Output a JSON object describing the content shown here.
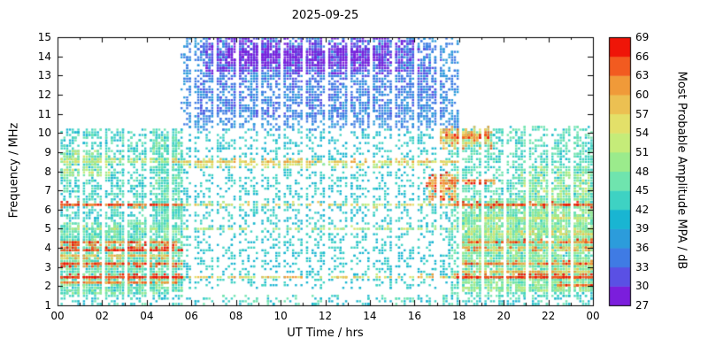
{
  "title": "2025-09-25",
  "axes": {
    "x_label": "UT Time / hrs",
    "y_label": "Frequency / MHz",
    "x_ticks": [
      "00",
      "02",
      "04",
      "06",
      "08",
      "10",
      "12",
      "14",
      "16",
      "18",
      "20",
      "22",
      "00"
    ],
    "y_ticks": [
      "1",
      "2",
      "3",
      "4",
      "5",
      "6",
      "7",
      "8",
      "9",
      "10",
      "11",
      "12",
      "13",
      "14",
      "15"
    ]
  },
  "colorbar": {
    "label": "Most Probable Amplitude MPA / dB",
    "min": 27,
    "max": 69,
    "step": 3,
    "tick_labels": [
      "27",
      "30",
      "33",
      "36",
      "39",
      "42",
      "45",
      "48",
      "51",
      "54",
      "57",
      "60",
      "63",
      "66",
      "69"
    ],
    "colors": [
      "#7B1EDC",
      "#5A50E4",
      "#3F7BE4",
      "#2C9CDB",
      "#19B5D2",
      "#3ED2C3",
      "#6FE4AE",
      "#9BEB8C",
      "#C5EC79",
      "#E3E069",
      "#ECC052",
      "#F09A39",
      "#F25B20",
      "#EF1508"
    ]
  },
  "chart_data": {
    "type": "heatmap",
    "title": "2025-09-25",
    "xlabel": "UT Time / hrs",
    "ylabel": "Frequency / MHz",
    "xlim": [
      0,
      24
    ],
    "ylim": [
      1,
      15
    ],
    "clim": [
      27,
      69
    ],
    "legend_position": "right-colorbar",
    "grid": false,
    "seed": 42,
    "regions": [
      {
        "name": "night-early-background",
        "t": [
          0,
          5.6
        ],
        "f": [
          1.4,
          10.2
        ],
        "n": 2400,
        "v": [
          40,
          47
        ]
      },
      {
        "name": "night-late-background",
        "t": [
          17.6,
          24
        ],
        "f": [
          1.4,
          10.3
        ],
        "n": 2800,
        "v": [
          41,
          48
        ]
      },
      {
        "name": "day-background",
        "t": [
          5.6,
          17.6
        ],
        "f": [
          1.9,
          10.2
        ],
        "n": 2300,
        "v": [
          39,
          45
        ]
      },
      {
        "name": "day-highband-blue",
        "t": [
          5.6,
          18.0
        ],
        "f": [
          10.2,
          15
        ],
        "n": 2400,
        "v": [
          33,
          39
        ]
      },
      {
        "name": "day-highband-blue-dense",
        "t": [
          6.3,
          17.3
        ],
        "f": [
          10.8,
          14.6
        ],
        "n": 1400,
        "v": [
          31,
          37
        ]
      },
      {
        "name": "day-top-purple",
        "t": [
          6.6,
          16.2
        ],
        "f": [
          13.1,
          15
        ],
        "n": 800,
        "v": [
          27,
          32
        ]
      },
      {
        "name": "day-top-purple-streak",
        "t": [
          7.6,
          14.6
        ],
        "f": [
          13.5,
          14.4
        ],
        "n": 450,
        "v": [
          27,
          30
        ]
      },
      {
        "name": "evening-green-dense",
        "t": [
          18,
          24
        ],
        "f": [
          1.8,
          6.6
        ],
        "n": 2600,
        "v": [
          44,
          52
        ]
      },
      {
        "name": "morning-green",
        "t": [
          0,
          5.6
        ],
        "f": [
          1.6,
          5.3
        ],
        "n": 1500,
        "v": [
          43,
          50
        ]
      },
      {
        "name": "bottom-row-sparse",
        "t": [
          0,
          24
        ],
        "f": [
          1.0,
          1.5
        ],
        "n": 320,
        "v": [
          39,
          47
        ]
      },
      {
        "name": "pre-dawn-column",
        "t": [
          4.3,
          5.6
        ],
        "f": [
          5.5,
          9.8
        ],
        "n": 420,
        "v": [
          42,
          49
        ]
      },
      {
        "name": "dusk-red-patch",
        "t": [
          16.6,
          17.9
        ],
        "f": [
          6.5,
          7.9
        ],
        "n": 150,
        "v": [
          54,
          68
        ]
      },
      {
        "name": "dusk-high-patch",
        "t": [
          17.1,
          19.4
        ],
        "f": [
          9.2,
          10.3
        ],
        "n": 170,
        "v": [
          51,
          66
        ]
      },
      {
        "name": "evening-mid-green",
        "t": [
          20.8,
          24
        ],
        "f": [
          6.6,
          8.3
        ],
        "n": 260,
        "v": [
          45,
          55
        ]
      },
      {
        "name": "early-mid-patch",
        "t": [
          0,
          2.3
        ],
        "f": [
          7.7,
          9.1
        ],
        "n": 180,
        "v": [
          45,
          55
        ]
      }
    ],
    "stripes": [
      {
        "f": 2.48,
        "t": [
          0,
          5.6
        ],
        "n": 230,
        "v": [
          63,
          69
        ]
      },
      {
        "f": 2.48,
        "t": [
          17.8,
          24
        ],
        "n": 260,
        "v": [
          63,
          69
        ]
      },
      {
        "f": 2.48,
        "t": [
          5.6,
          17.8
        ],
        "n": 110,
        "v": [
          51,
          63
        ]
      },
      {
        "f": 2.2,
        "t": [
          0,
          5.4
        ],
        "n": 130,
        "v": [
          57,
          66
        ]
      },
      {
        "f": 2.75,
        "t": [
          18,
          24
        ],
        "n": 120,
        "v": [
          54,
          63
        ]
      },
      {
        "f": 3.15,
        "t": [
          0,
          5.6
        ],
        "n": 170,
        "v": [
          60,
          69
        ]
      },
      {
        "f": 3.18,
        "t": [
          17.9,
          24
        ],
        "n": 150,
        "v": [
          57,
          67
        ]
      },
      {
        "f": 3.55,
        "t": [
          0,
          5.2
        ],
        "n": 110,
        "v": [
          54,
          63
        ]
      },
      {
        "f": 3.9,
        "t": [
          0,
          5.6
        ],
        "n": 180,
        "v": [
          62,
          69
        ]
      },
      {
        "f": 3.95,
        "t": [
          18,
          24
        ],
        "n": 130,
        "v": [
          55,
          65
        ]
      },
      {
        "f": 4.25,
        "t": [
          0,
          5.4
        ],
        "n": 140,
        "v": [
          58,
          68
        ]
      },
      {
        "f": 4.3,
        "t": [
          18,
          24
        ],
        "n": 150,
        "v": [
          58,
          68
        ]
      },
      {
        "f": 4.75,
        "t": [
          18,
          24
        ],
        "n": 110,
        "v": [
          50,
          59
        ]
      },
      {
        "f": 5.0,
        "t": [
          0,
          24
        ],
        "n": 190,
        "v": [
          47,
          56
        ]
      },
      {
        "f": 5.55,
        "t": [
          18,
          24
        ],
        "n": 110,
        "v": [
          50,
          58
        ]
      },
      {
        "f": 6.25,
        "t": [
          0,
          5.6
        ],
        "n": 160,
        "v": [
          59,
          69
        ]
      },
      {
        "f": 6.25,
        "t": [
          17.7,
          24
        ],
        "n": 190,
        "v": [
          60,
          69
        ]
      },
      {
        "f": 6.25,
        "t": [
          5.6,
          17.7
        ],
        "n": 120,
        "v": [
          50,
          60
        ]
      },
      {
        "f": 7.45,
        "t": [
          16.5,
          19.6
        ],
        "n": 90,
        "v": [
          57,
          69
        ]
      },
      {
        "f": 8.5,
        "t": [
          5.2,
          18
        ],
        "n": 260,
        "v": [
          53,
          62
        ]
      },
      {
        "f": 8.55,
        "t": [
          0,
          5.2
        ],
        "n": 100,
        "v": [
          48,
          57
        ]
      },
      {
        "f": 8.3,
        "t": [
          5.6,
          17.6
        ],
        "n": 130,
        "v": [
          50,
          58
        ]
      },
      {
        "f": 9.8,
        "t": [
          17.2,
          19.3
        ],
        "n": 90,
        "v": [
          56,
          68
        ]
      },
      {
        "f": 2.05,
        "t": [
          22.4,
          24
        ],
        "n": 60,
        "v": [
          58,
          68
        ]
      },
      {
        "f": 1.85,
        "t": [
          18,
          24
        ],
        "n": 90,
        "v": [
          45,
          54
        ]
      }
    ]
  }
}
